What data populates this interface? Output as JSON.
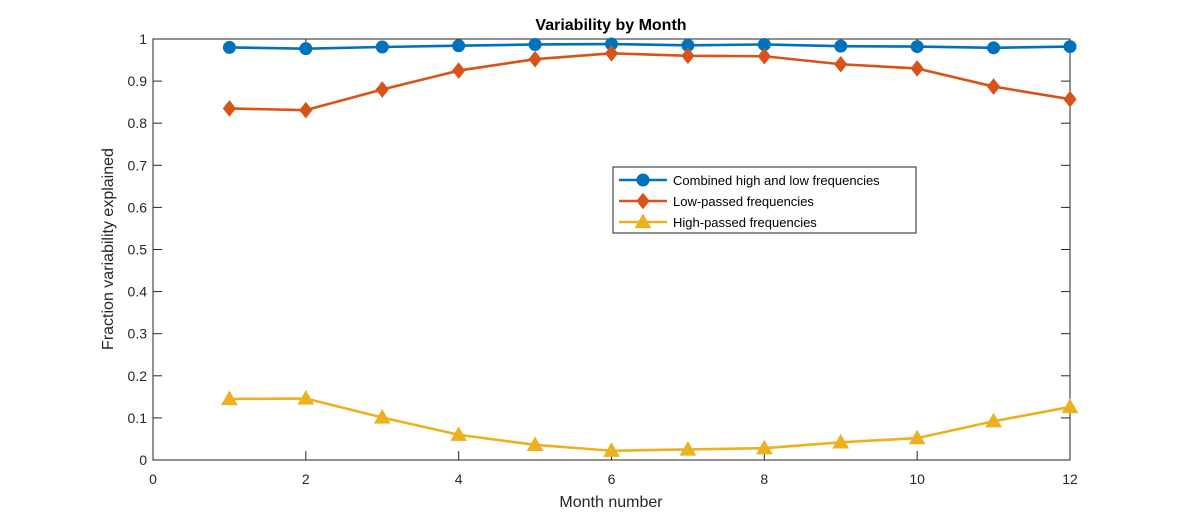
{
  "chart_data": {
    "type": "line",
    "title": "Variability by Month",
    "xlabel": "Month number",
    "ylabel": "Fraction variability explained",
    "xlim": [
      0,
      12
    ],
    "ylim": [
      0,
      1
    ],
    "x_ticks": [
      "0",
      "2",
      "4",
      "6",
      "8",
      "10",
      "12"
    ],
    "y_ticks": [
      "0",
      "0.1",
      "0.2",
      "0.3",
      "0.4",
      "0.5",
      "0.6",
      "0.7",
      "0.8",
      "0.9",
      "1"
    ],
    "grid": false,
    "legend_position": "center-right",
    "x": [
      1,
      2,
      3,
      4,
      5,
      6,
      7,
      8,
      9,
      10,
      11,
      12
    ],
    "series": [
      {
        "name": "Combined high and low frequencies",
        "marker": "circle",
        "color": "#0072BD",
        "values": [
          0.98,
          0.977,
          0.981,
          0.984,
          0.987,
          0.988,
          0.985,
          0.987,
          0.983,
          0.982,
          0.979,
          0.982
        ]
      },
      {
        "name": "Low-passed frequencies",
        "marker": "diamond",
        "color": "#D95319",
        "values": [
          0.835,
          0.831,
          0.88,
          0.925,
          0.952,
          0.966,
          0.96,
          0.959,
          0.94,
          0.93,
          0.887,
          0.857
        ]
      },
      {
        "name": "High-passed frequencies",
        "marker": "triangle",
        "color": "#EDB120",
        "values": [
          0.145,
          0.146,
          0.101,
          0.06,
          0.036,
          0.022,
          0.025,
          0.028,
          0.042,
          0.052,
          0.092,
          0.126
        ]
      }
    ]
  }
}
